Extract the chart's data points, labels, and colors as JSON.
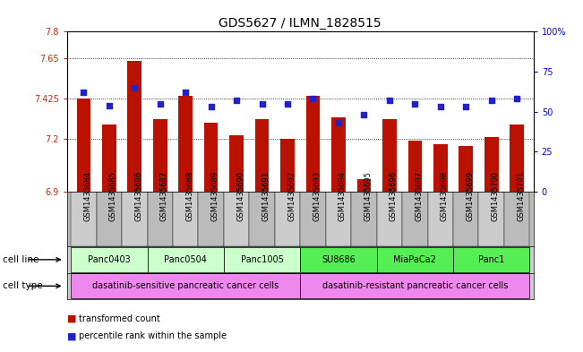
{
  "title": "GDS5627 / ILMN_1828515",
  "samples": [
    "GSM1435684",
    "GSM1435685",
    "GSM1435686",
    "GSM1435687",
    "GSM1435688",
    "GSM1435689",
    "GSM1435690",
    "GSM1435691",
    "GSM1435692",
    "GSM1435693",
    "GSM1435694",
    "GSM1435695",
    "GSM1435696",
    "GSM1435697",
    "GSM1435698",
    "GSM1435699",
    "GSM1435700",
    "GSM1435701"
  ],
  "bar_values": [
    7.425,
    7.28,
    7.635,
    7.31,
    7.44,
    7.29,
    7.22,
    7.31,
    7.2,
    7.44,
    7.32,
    6.97,
    7.31,
    7.19,
    7.17,
    7.16,
    7.21,
    7.28
  ],
  "percentile_values": [
    62,
    54,
    65,
    55,
    62,
    53,
    57,
    55,
    55,
    58,
    43,
    48,
    57,
    55,
    53,
    53,
    57,
    58
  ],
  "ymin": 6.9,
  "ymax": 7.8,
  "yticks": [
    6.9,
    7.2,
    7.425,
    7.65,
    7.8
  ],
  "ytick_labels": [
    "6.9",
    "7.2",
    "7.425",
    "7.65",
    "7.8"
  ],
  "y2min": 0,
  "y2max": 100,
  "y2ticks": [
    0,
    25,
    50,
    75,
    100
  ],
  "y2tick_labels": [
    "0",
    "25",
    "50",
    "75",
    "100%"
  ],
  "bar_color": "#bb1100",
  "dot_color": "#2222cc",
  "cell_lines": [
    {
      "name": "Panc0403",
      "start": 0,
      "end": 2,
      "color": "#ccffcc"
    },
    {
      "name": "Panc0504",
      "start": 3,
      "end": 5,
      "color": "#ccffcc"
    },
    {
      "name": "Panc1005",
      "start": 6,
      "end": 8,
      "color": "#ccffcc"
    },
    {
      "name": "SU8686",
      "start": 9,
      "end": 11,
      "color": "#55ee55"
    },
    {
      "name": "MiaPaCa2",
      "start": 12,
      "end": 14,
      "color": "#55ee55"
    },
    {
      "name": "Panc1",
      "start": 15,
      "end": 17,
      "color": "#55ee55"
    }
  ],
  "cell_types": [
    {
      "name": "dasatinib-sensitive pancreatic cancer cells",
      "start": 0,
      "end": 8,
      "color": "#ee88ee"
    },
    {
      "name": "dasatinib-resistant pancreatic cancer cells",
      "start": 9,
      "end": 17,
      "color": "#ee88ee"
    }
  ],
  "legend_bar_label": "transformed count",
  "legend_dot_label": "percentile rank within the sample",
  "bg_color": "#ffffff",
  "plot_bg_color": "#ffffff",
  "tick_box_color": "#cccccc",
  "grid_color": "#000000",
  "label_color_left": "#cc2200",
  "label_color_right": "#0000cc",
  "title_fontsize": 10,
  "tick_fontsize": 7,
  "sample_fontsize": 6,
  "label_fontsize": 7.5
}
